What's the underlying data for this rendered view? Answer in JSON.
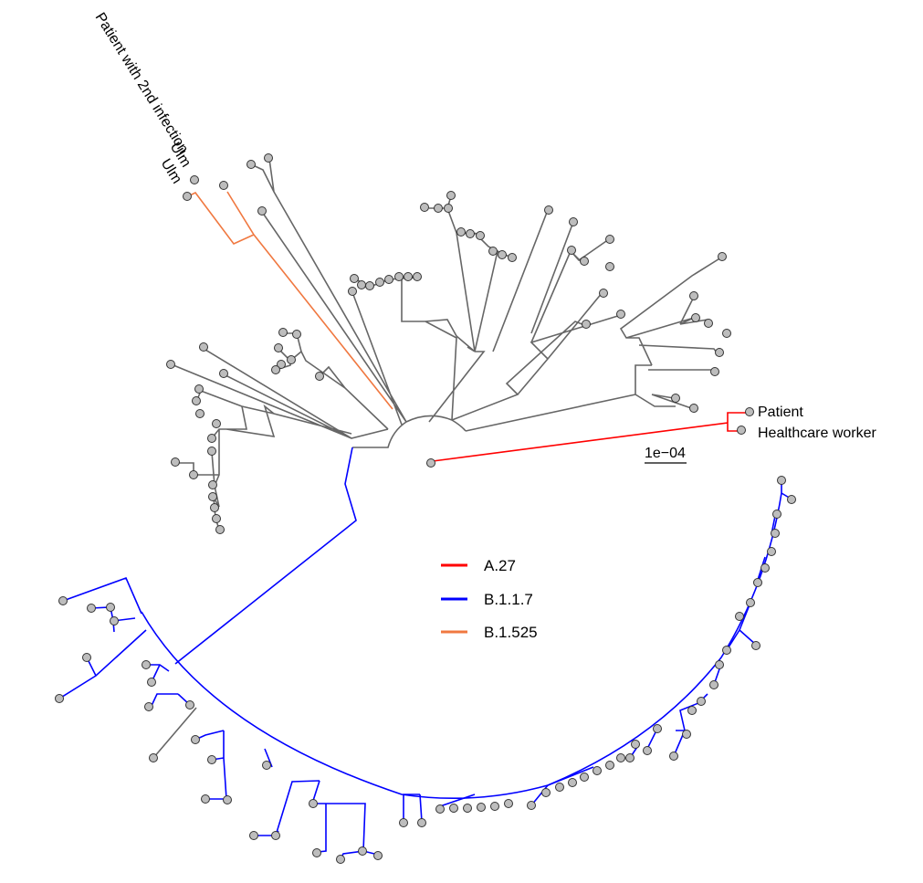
{
  "labels": {
    "second_infection": "Patient with 2nd infection",
    "ulm_1": "Ulm",
    "ulm_2": "Ulm",
    "patient": "Patient",
    "healthcare_worker": "Healthcare worker"
  },
  "scale_bar": {
    "label": "1e−04"
  },
  "legend": {
    "items": [
      {
        "label": "A.27",
        "color": "#ff0000"
      },
      {
        "label": "B.1.1.7",
        "color": "#0000ff"
      },
      {
        "label": "B.1.525",
        "color": "#f07840"
      }
    ]
  },
  "colors": {
    "default_branch": "#666666",
    "tip_fill": "#bdbdbd"
  }
}
